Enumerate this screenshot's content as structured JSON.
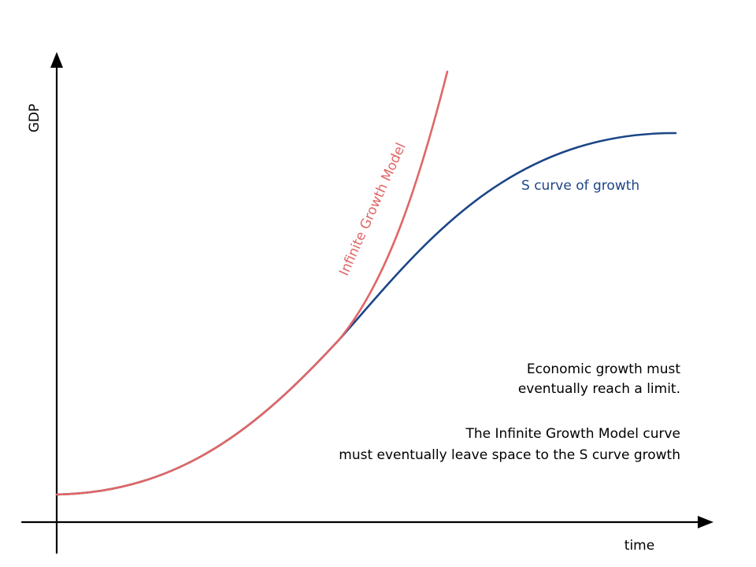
{
  "axes": {
    "y_label": "GDP",
    "x_label": "time"
  },
  "curves": {
    "infinite_growth_label": "Infinite Growth Model",
    "s_curve_label": "S curve of growth"
  },
  "notes": {
    "line1": "Economic growth must",
    "line2": "eventually reach a limit.",
    "line3": "The Infinite Growth Model curve",
    "line4": "must eventually leave space to the S curve growth"
  },
  "colors": {
    "axis": "#000000",
    "infinite_growth": "#e06666",
    "s_curve": "#1c4587",
    "text": "#000000"
  }
}
